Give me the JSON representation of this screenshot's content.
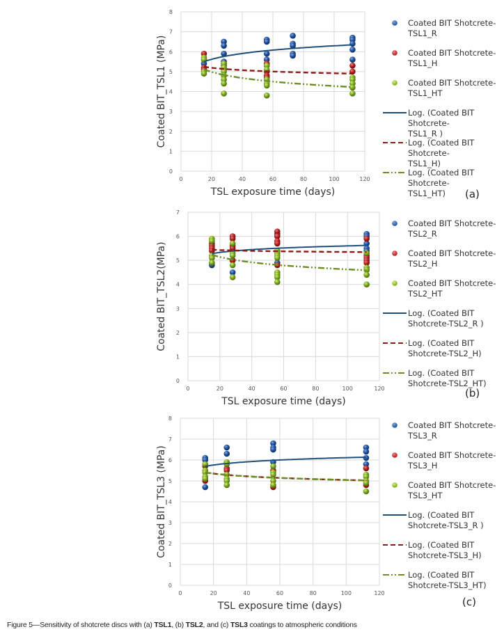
{
  "caption": {
    "prefix": "Figure 5—Sensitivity of shotcrete discs with (a) ",
    "b1": "TSL1",
    "mid1": ", (b) ",
    "b2": "TSL2",
    "mid2": ", and (c) ",
    "b3": "TSL3",
    "suffix": " coatings to atmospheric conditions"
  },
  "colors": {
    "R": "#1f4e9c",
    "H": "#b01c1c",
    "HT": "#7aa620",
    "R_line": "#1f4e79",
    "H_line": "#8b1a1a",
    "HT_line": "#6b8e23",
    "grid": "#d9d9d9"
  },
  "chart_data": [
    {
      "type": "scatter",
      "panel_label": "(a)",
      "xlabel": "TSL exposure time (days)",
      "ylabel": "Coated BIT_TSL1 (MPa)",
      "xlim": [
        0,
        120
      ],
      "ylim": [
        0,
        8
      ],
      "xticks": [
        0,
        20,
        40,
        60,
        80,
        100,
        120
      ],
      "yticks": [
        0,
        1,
        2,
        3,
        4,
        5,
        6,
        7,
        8
      ],
      "grid": true,
      "legend_position": "right",
      "series": [
        {
          "key": "R",
          "name": "Coated BIT Shotcrete-TSL1_R",
          "legend_lines": [
            "Coated BIT Shotcrete-",
            "TSL1_R"
          ],
          "points": [
            [
              15,
              5.4
            ],
            [
              15,
              5.6
            ],
            [
              28,
              6.5
            ],
            [
              28,
              6.3
            ],
            [
              28,
              5.9
            ],
            [
              28,
              5.5
            ],
            [
              56,
              6.6
            ],
            [
              56,
              6.5
            ],
            [
              56,
              5.9
            ],
            [
              56,
              5.6
            ],
            [
              73,
              6.8
            ],
            [
              73,
              6.4
            ],
            [
              73,
              6.3
            ],
            [
              73,
              5.9
            ],
            [
              73,
              5.8
            ],
            [
              112,
              6.7
            ],
            [
              112,
              6.6
            ],
            [
              112,
              6.4
            ],
            [
              112,
              6.1
            ],
            [
              112,
              5.6
            ]
          ]
        },
        {
          "key": "H",
          "name": "Coated BIT Shotcrete-TSL1_H",
          "legend_lines": [
            "Coated BIT Shotcrete-",
            "TSL1_H"
          ],
          "points": [
            [
              15,
              5.9
            ],
            [
              15,
              5.2
            ],
            [
              15,
              5.1
            ],
            [
              28,
              5.4
            ],
            [
              28,
              5.3
            ],
            [
              28,
              5.1
            ],
            [
              56,
              5.4
            ],
            [
              56,
              5.3
            ],
            [
              56,
              5.0
            ],
            [
              56,
              4.8
            ],
            [
              56,
              4.7
            ],
            [
              112,
              5.3
            ],
            [
              112,
              5.0
            ]
          ]
        },
        {
          "key": "HT",
          "name": "Coated BIT Shotcrete-TSL1_HT",
          "legend_lines": [
            "Coated BIT Shotcrete-",
            "TSL1_HT"
          ],
          "points": [
            [
              15,
              5.7
            ],
            [
              15,
              5.6
            ],
            [
              15,
              5.0
            ],
            [
              15,
              4.9
            ],
            [
              28,
              5.4
            ],
            [
              28,
              5.2
            ],
            [
              28,
              5.0
            ],
            [
              28,
              4.8
            ],
            [
              28,
              4.6
            ],
            [
              28,
              4.4
            ],
            [
              28,
              3.9
            ],
            [
              56,
              5.3
            ],
            [
              56,
              5.1
            ],
            [
              56,
              4.6
            ],
            [
              56,
              4.4
            ],
            [
              56,
              4.3
            ],
            [
              56,
              3.8
            ],
            [
              112,
              4.7
            ],
            [
              112,
              4.6
            ],
            [
              112,
              4.4
            ],
            [
              112,
              4.2
            ],
            [
              112,
              3.9
            ]
          ]
        }
      ],
      "trendlines": [
        {
          "key": "R",
          "type": "log",
          "name": "Log. (Coated BIT Shotcrete-TSL1_R )",
          "legend_lines": [
            "Log. (Coated BIT Shotcrete-",
            "TSL1_R )"
          ],
          "a": 0.42,
          "b": 4.36,
          "x_range": [
            15,
            112
          ]
        },
        {
          "key": "H",
          "type": "log",
          "name": "Log. (Coated BIT Shotcrete-TSL1_H)",
          "legend_lines": [
            "Log. (Coated BIT Shotcrete-",
            "TSL1_H)"
          ],
          "a": -0.17,
          "b": 5.7,
          "x_range": [
            15,
            112
          ]
        },
        {
          "key": "HT",
          "type": "log",
          "name": "Log. (Coated BIT Shotcrete-TSL1_HT)",
          "legend_lines": [
            "Log. (Coated BIT Shotcrete-",
            "TSL1_HT)"
          ],
          "a": -0.44,
          "b": 6.3,
          "x_range": [
            15,
            112
          ]
        }
      ]
    },
    {
      "type": "scatter",
      "panel_label": "(b)",
      "xlabel": "TSL exposure time (days)",
      "ylabel": "Coated BIT_TSL2(MPa)",
      "xlim": [
        0,
        120
      ],
      "ylim": [
        0,
        7
      ],
      "xticks": [
        0,
        20,
        40,
        60,
        80,
        100,
        120
      ],
      "yticks": [
        0,
        1,
        2,
        3,
        4,
        5,
        6,
        7
      ],
      "grid": true,
      "legend_position": "right",
      "series": [
        {
          "key": "R",
          "name": "Coated BIT Shotcrete-TSL2_R",
          "legend_lines": [
            "Coated BIT Shotcrete-",
            "TSL2_R"
          ],
          "points": [
            [
              15,
              4.9
            ],
            [
              15,
              4.8
            ],
            [
              28,
              5.0
            ],
            [
              28,
              4.5
            ],
            [
              56,
              6.1
            ],
            [
              56,
              4.9
            ],
            [
              112,
              6.1
            ],
            [
              112,
              6.0
            ],
            [
              112,
              5.7
            ],
            [
              112,
              5.5
            ],
            [
              112,
              5.4
            ]
          ]
        },
        {
          "key": "H",
          "name": "Coated BIT Shotcrete-TSL2_H",
          "legend_lines": [
            "Coated BIT Shotcrete-",
            "TSL2_H"
          ],
          "points": [
            [
              15,
              5.7
            ],
            [
              15,
              5.6
            ],
            [
              15,
              5.5
            ],
            [
              15,
              5.4
            ],
            [
              28,
              6.0
            ],
            [
              28,
              5.9
            ],
            [
              28,
              5.6
            ],
            [
              28,
              5.5
            ],
            [
              28,
              5.0
            ],
            [
              56,
              6.2
            ],
            [
              56,
              6.0
            ],
            [
              56,
              5.8
            ],
            [
              56,
              5.7
            ],
            [
              56,
              4.8
            ],
            [
              112,
              5.9
            ],
            [
              112,
              5.2
            ],
            [
              112,
              5.1
            ],
            [
              112,
              5.0
            ],
            [
              112,
              4.9
            ]
          ]
        },
        {
          "key": "HT",
          "name": "Coated BIT Shotcrete-TSL2_HT",
          "legend_lines": [
            "Coated BIT Shotcrete-",
            "TSL2_HT"
          ],
          "points": [
            [
              15,
              5.9
            ],
            [
              15,
              5.8
            ],
            [
              15,
              5.2
            ],
            [
              15,
              5.1
            ],
            [
              15,
              4.9
            ],
            [
              28,
              5.7
            ],
            [
              28,
              5.3
            ],
            [
              28,
              5.2
            ],
            [
              28,
              4.8
            ],
            [
              28,
              4.3
            ],
            [
              56,
              5.4
            ],
            [
              56,
              5.3
            ],
            [
              56,
              5.2
            ],
            [
              56,
              5.1
            ],
            [
              56,
              4.5
            ],
            [
              56,
              4.4
            ],
            [
              56,
              4.3
            ],
            [
              56,
              4.1
            ],
            [
              112,
              5.3
            ],
            [
              112,
              4.7
            ],
            [
              112,
              4.6
            ],
            [
              112,
              4.4
            ],
            [
              112,
              4.0
            ]
          ]
        }
      ],
      "trendlines": [
        {
          "key": "R",
          "type": "log",
          "name": "Log. (Coated BIT Shotcrete-TSL2_R )",
          "legend_lines": [
            "Log. (Coated BIT",
            "Shotcrete-TSL2_R )"
          ],
          "a": 0.17,
          "b": 4.82,
          "x_range": [
            15,
            112
          ]
        },
        {
          "key": "H",
          "type": "log",
          "name": "Log. (Coated BIT Shotcrete-TSL2_H)",
          "legend_lines": [
            "Log. (Coated BIT",
            "Shotcrete-TSL2_H)"
          ],
          "a": -0.05,
          "b": 5.58,
          "x_range": [
            15,
            112
          ]
        },
        {
          "key": "HT",
          "type": "log",
          "name": "Log. (Coated BIT Shotcrete-TSL2_HT)",
          "legend_lines": [
            "Log. (Coated BIT",
            "Shotcrete-TSL2_HT)"
          ],
          "a": -0.32,
          "b": 6.1,
          "x_range": [
            15,
            112
          ]
        }
      ]
    },
    {
      "type": "scatter",
      "panel_label": "(c)",
      "xlabel": "TSL exposure time (days)",
      "ylabel": "Coated BIT_TSL3 (MPa)",
      "xlim": [
        0,
        120
      ],
      "ylim": [
        0,
        8
      ],
      "xticks": [
        0,
        20,
        40,
        60,
        80,
        100,
        120
      ],
      "yticks": [
        0,
        1,
        2,
        3,
        4,
        5,
        6,
        7,
        8
      ],
      "grid": true,
      "legend_position": "right",
      "series": [
        {
          "key": "R",
          "name": "Coated BIT Shotcrete-TSL3_R",
          "legend_lines": [
            "Coated BIT Shotcrete-",
            "TSL3_R"
          ],
          "points": [
            [
              15,
              6.1
            ],
            [
              15,
              6.0
            ],
            [
              15,
              4.7
            ],
            [
              28,
              6.6
            ],
            [
              28,
              6.3
            ],
            [
              56,
              6.8
            ],
            [
              56,
              6.6
            ],
            [
              56,
              6.5
            ],
            [
              56,
              5.9
            ],
            [
              112,
              6.6
            ],
            [
              112,
              6.4
            ],
            [
              112,
              6.1
            ],
            [
              112,
              5.8
            ]
          ]
        },
        {
          "key": "H",
          "name": "Coated BIT Shotcrete-TSL3_H",
          "legend_lines": [
            "Coated BIT Shotcrete-",
            "TSL3_H"
          ],
          "points": [
            [
              15,
              5.7
            ],
            [
              15,
              5.0
            ],
            [
              28,
              5.6
            ],
            [
              28,
              5.5
            ],
            [
              56,
              5.5
            ],
            [
              56,
              4.7
            ],
            [
              112,
              5.6
            ],
            [
              112,
              4.8
            ]
          ]
        },
        {
          "key": "HT",
          "name": "Coated BIT Shotcrete-TSL3_HT",
          "legend_lines": [
            "Coated BIT Shotcrete-",
            "TSL3_HT"
          ],
          "points": [
            [
              15,
              5.8
            ],
            [
              15,
              5.5
            ],
            [
              15,
              5.4
            ],
            [
              15,
              5.2
            ],
            [
              15,
              5.1
            ],
            [
              28,
              5.9
            ],
            [
              28,
              5.8
            ],
            [
              28,
              5.3
            ],
            [
              28,
              5.1
            ],
            [
              28,
              5.0
            ],
            [
              28,
              4.8
            ],
            [
              56,
              5.7
            ],
            [
              56,
              5.4
            ],
            [
              56,
              5.3
            ],
            [
              56,
              5.0
            ],
            [
              56,
              4.8
            ],
            [
              112,
              5.3
            ],
            [
              112,
              5.2
            ],
            [
              112,
              5.0
            ],
            [
              112,
              4.9
            ],
            [
              112,
              4.5
            ]
          ]
        }
      ],
      "trendlines": [
        {
          "key": "R",
          "type": "log",
          "name": "Log. (Coated BIT Shotcrete-TSL3_R )",
          "legend_lines": [
            "Log. (Coated BIT",
            "Shotcrete-TSL3_R )"
          ],
          "a": 0.22,
          "b": 5.1,
          "x_range": [
            15,
            112
          ]
        },
        {
          "key": "H",
          "type": "log",
          "name": "Log. (Coated BIT Shotcrete-TSL3_H)",
          "legend_lines": [
            "Log. (Coated BIT",
            "Shotcrete-TSL3_H)"
          ],
          "a": -0.19,
          "b": 5.92,
          "x_range": [
            15,
            112
          ]
        },
        {
          "key": "HT",
          "type": "log",
          "name": "Log. (Coated BIT Shotcrete-TSL3_HT)",
          "legend_lines": [
            "Log. (Coated BIT",
            "Shotcrete-TSL3_HT)"
          ],
          "a": -0.19,
          "b": 5.92,
          "x_range": [
            15,
            112
          ]
        }
      ]
    }
  ]
}
